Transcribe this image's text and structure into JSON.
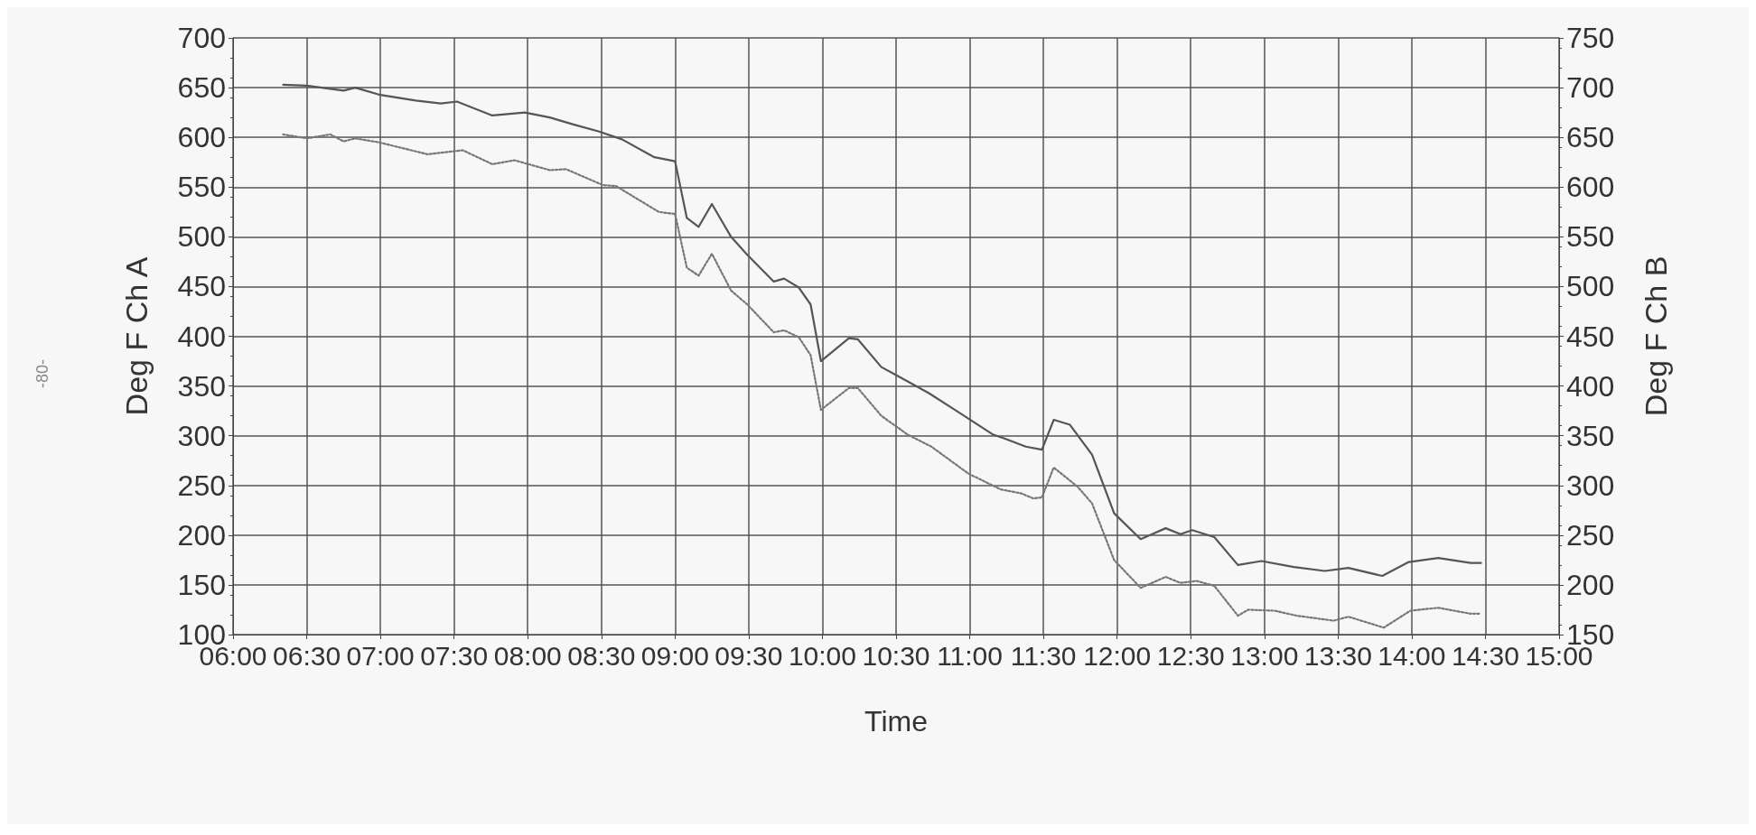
{
  "chart_data": {
    "type": "line",
    "xlabel": "Time",
    "ylabel": "Deg F Ch A",
    "y2label": "Deg F Ch B",
    "annotations": [
      "-80-"
    ],
    "xlim": [
      6,
      15
    ],
    "xticks": [
      {
        "value": 6,
        "label": "06:00"
      },
      {
        "value": 6.5,
        "label": "06:30"
      },
      {
        "value": 7,
        "label": "07:00"
      },
      {
        "value": 7.5,
        "label": "07:30"
      },
      {
        "value": 8,
        "label": "08:00"
      },
      {
        "value": 8.5,
        "label": "08:30"
      },
      {
        "value": 9,
        "label": "09:00"
      },
      {
        "value": 9.5,
        "label": "09:30"
      },
      {
        "value": 10,
        "label": "10:00"
      },
      {
        "value": 10.5,
        "label": "10:30"
      },
      {
        "value": 11,
        "label": "11:00"
      },
      {
        "value": 11.5,
        "label": "11:30"
      },
      {
        "value": 12,
        "label": "12:00"
      },
      {
        "value": 12.5,
        "label": "12:30"
      },
      {
        "value": 13,
        "label": "13:00"
      },
      {
        "value": 13.5,
        "label": "13:30"
      },
      {
        "value": 14,
        "label": "14:00"
      },
      {
        "value": 14.5,
        "label": "14:30"
      },
      {
        "value": 15,
        "label": "15:00"
      }
    ],
    "ylim": [
      100,
      700
    ],
    "yticks": [
      100,
      150,
      200,
      250,
      300,
      350,
      400,
      450,
      500,
      550,
      600,
      650,
      700
    ],
    "y2lim": [
      150,
      750
    ],
    "y2ticks": [
      150,
      200,
      250,
      300,
      350,
      400,
      450,
      500,
      550,
      600,
      650,
      700,
      750
    ],
    "grid": true,
    "marker": "none",
    "series": [
      {
        "color": "#555555",
        "line_style": "solid",
        "x": [
          6.34,
          6.5,
          6.75,
          6.83,
          6.99,
          7.24,
          7.41,
          7.52,
          7.76,
          7.98,
          8.15,
          8.31,
          8.48,
          8.64,
          8.86,
          9.0,
          9.08,
          9.16,
          9.25,
          9.38,
          9.49,
          9.67,
          9.74,
          9.84,
          9.92,
          9.99,
          10.18,
          10.24,
          10.4,
          10.5,
          10.72,
          10.91,
          11.16,
          11.24,
          11.38,
          11.49,
          11.57,
          11.68,
          11.83,
          11.98,
          12.16,
          12.33,
          12.43,
          12.51,
          12.66,
          12.82,
          12.98,
          13.2,
          13.41,
          13.57,
          13.8,
          13.98,
          14.18,
          14.4,
          14.47
        ],
        "values": [
          653,
          652,
          647,
          650,
          643,
          637,
          634,
          636,
          622,
          625,
          620,
          613,
          606,
          598,
          580,
          576,
          519,
          510,
          533,
          500,
          482,
          455,
          458,
          449,
          432,
          375,
          398,
          397,
          369,
          361,
          343,
          325,
          301,
          297,
          289,
          286,
          316,
          311,
          281,
          222,
          196,
          207,
          201,
          205,
          198,
          170,
          174,
          168,
          164,
          167,
          159,
          173,
          177,
          172,
          172
        ]
      },
      {
        "color": "#777777",
        "line_style": "dotted",
        "axis": "y2",
        "x": [
          6.34,
          6.5,
          6.66,
          6.75,
          6.83,
          6.99,
          7.32,
          7.56,
          7.76,
          7.91,
          8.15,
          8.26,
          8.51,
          8.6,
          8.89,
          9.0,
          9.08,
          9.16,
          9.25,
          9.38,
          9.49,
          9.67,
          9.74,
          9.84,
          9.92,
          9.99,
          10.18,
          10.24,
          10.4,
          10.58,
          10.74,
          10.99,
          11.21,
          11.35,
          11.43,
          11.49,
          11.57,
          11.73,
          11.83,
          11.98,
          12.16,
          12.33,
          12.43,
          12.54,
          12.66,
          12.82,
          12.89,
          13.07,
          13.22,
          13.47,
          13.57,
          13.81,
          13.99,
          14.18,
          14.4,
          14.47
        ],
        "values": [
          653,
          649,
          653,
          646,
          649,
          645,
          633,
          637,
          623,
          627,
          617,
          618,
          602,
          601,
          575,
          573,
          519,
          511,
          533,
          496,
          482,
          454,
          456,
          449,
          431,
          376,
          398,
          398,
          370,
          351,
          339,
          312,
          296,
          292,
          287,
          288,
          318,
          299,
          282,
          225,
          197,
          208,
          202,
          204,
          199,
          169,
          175,
          174,
          169,
          164,
          168,
          157,
          174,
          177,
          171,
          171
        ]
      }
    ]
  }
}
